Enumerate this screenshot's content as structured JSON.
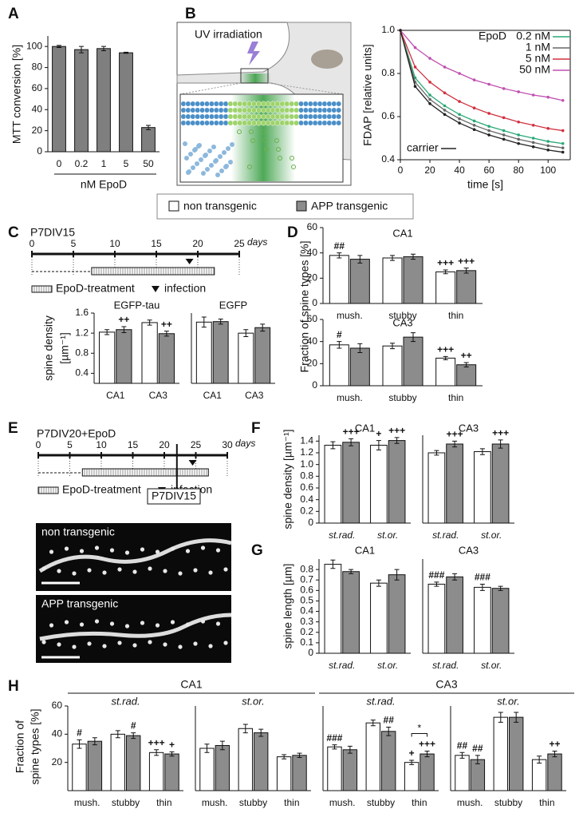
{
  "panels": {
    "labels": [
      "A",
      "B",
      "C",
      "D",
      "E",
      "F",
      "G",
      "H"
    ],
    "B": {
      "annotation": "UV irradiation"
    },
    "legend": [
      {
        "name": "non transgenic",
        "color": "#ffffff"
      },
      {
        "name": "APP transgenic",
        "color": "#8c8c8c"
      }
    ],
    "C": {
      "title": "P7DIV15",
      "ticks": [
        0,
        5,
        10,
        15,
        20,
        25
      ],
      "unit": "days",
      "treatment": "EpoD-treatment",
      "infection": "infection"
    },
    "E": {
      "title": "P7DIV20+EpoD",
      "ticks": [
        0,
        5,
        10,
        15,
        20,
        25,
        30
      ],
      "unit": "days",
      "marker": "P7DIV15",
      "treatment": "EpoD-treatment",
      "infection": "infection",
      "images": [
        "non transgenic",
        "APP transgenic"
      ]
    },
    "H": {
      "groups": [
        "CA1",
        "CA3"
      ]
    }
  },
  "chart_data": [
    {
      "type": "bar",
      "ylabel": "MTT conversion [%]",
      "xlabel": "nM EpoD",
      "categories": [
        "0",
        "0.2",
        "1",
        "5",
        "50"
      ],
      "values": [
        100,
        97,
        98,
        94,
        23
      ],
      "errors": [
        1,
        3,
        2,
        0.5,
        2
      ],
      "color": "#7f7f7f",
      "ylim": [
        0,
        110
      ],
      "yticks": [
        0,
        20,
        40,
        60,
        80,
        100
      ]
    },
    {
      "type": "line",
      "ylabel": "FDAP [relative units]",
      "xlabel": "time [s]",
      "legend_title": "EpoD",
      "x": [
        0,
        10,
        20,
        30,
        40,
        50,
        60,
        70,
        80,
        90,
        100,
        110
      ],
      "xlim": [
        0,
        115
      ],
      "ylim": [
        0.4,
        1.0
      ],
      "xticks": [
        0,
        20,
        40,
        60,
        80,
        100
      ],
      "yticks": [
        0.4,
        0.6,
        0.8,
        {
          "value": 1,
          "label": "1.0"
        }
      ],
      "series": [
        {
          "name": "0.2 nM",
          "color": "#2aa876",
          "values": [
            1.0,
            0.78,
            0.7,
            0.65,
            0.61,
            0.58,
            0.555,
            0.535,
            0.515,
            0.5,
            0.485,
            0.475
          ]
        },
        {
          "name": "1 nM",
          "color": "#666666",
          "values": [
            1.0,
            0.76,
            0.68,
            0.63,
            0.59,
            0.56,
            0.535,
            0.515,
            0.495,
            0.48,
            0.465,
            0.455
          ]
        },
        {
          "name": "5 nM",
          "color": "#d0303f",
          "values": [
            1.0,
            0.83,
            0.76,
            0.71,
            0.67,
            0.64,
            0.615,
            0.595,
            0.575,
            0.56,
            0.545,
            0.535
          ]
        },
        {
          "name": "50 nM",
          "color": "#c050b0",
          "values": [
            1.0,
            0.92,
            0.87,
            0.83,
            0.8,
            0.77,
            0.75,
            0.73,
            0.715,
            0.7,
            0.69,
            0.675
          ]
        },
        {
          "name": "carrier",
          "color": "#222222",
          "values": [
            1.0,
            0.74,
            0.66,
            0.61,
            0.57,
            0.54,
            0.515,
            0.495,
            0.475,
            0.46,
            0.445,
            0.435
          ]
        }
      ]
    },
    {
      "type": "bar",
      "title": "EGFP-tau",
      "ylabel": [
        "spine density",
        "[µm⁻¹]"
      ],
      "categories": [
        "CA1",
        "CA3"
      ],
      "ylim": [
        0.2,
        1.6
      ],
      "yticks": [
        0.4,
        0.8,
        1.2,
        1.6
      ],
      "series": [
        {
          "color": "#ffffff",
          "values": [
            1.22,
            1.41
          ],
          "errors": [
            0.05,
            0.05
          ],
          "annotations": [
            null,
            null
          ]
        },
        {
          "color": "#8c8c8c",
          "values": [
            1.27,
            1.19
          ],
          "errors": [
            0.06,
            0.05
          ],
          "annotations": [
            "++",
            "++"
          ]
        }
      ]
    },
    {
      "type": "bar",
      "title": "EGFP",
      "categories": [
        "CA1",
        "CA3"
      ],
      "ylim": [
        0.2,
        1.6
      ],
      "series": [
        {
          "color": "#ffffff",
          "values": [
            1.42,
            1.2
          ],
          "errors": [
            0.1,
            0.07
          ],
          "annotations": [
            null,
            null
          ]
        },
        {
          "color": "#8c8c8c",
          "values": [
            1.43,
            1.31
          ],
          "errors": [
            0.05,
            0.07
          ],
          "annotations": [
            null,
            null
          ]
        }
      ]
    },
    {
      "type": "bar",
      "title": "CA1",
      "ylabel": "Fraction of spine types [%]",
      "categories": [
        "mush.",
        "stubby",
        "thin"
      ],
      "ylim": [
        0,
        60
      ],
      "yticks": [
        0,
        20,
        40,
        60
      ],
      "series": [
        {
          "color": "#ffffff",
          "values": [
            38,
            36,
            25
          ],
          "errors": [
            2,
            2,
            1.5
          ],
          "annotations": [
            "##",
            null,
            "+++"
          ]
        },
        {
          "color": "#8c8c8c",
          "values": [
            35,
            37,
            26
          ],
          "errors": [
            3,
            2,
            2
          ],
          "annotations": [
            null,
            null,
            "+++"
          ]
        }
      ]
    },
    {
      "type": "bar",
      "title": "CA3",
      "categories": [
        "mush.",
        "stubby",
        "thin"
      ],
      "ylim": [
        0,
        60
      ],
      "yticks": [
        0,
        20,
        40,
        60
      ],
      "series": [
        {
          "color": "#ffffff",
          "values": [
            37,
            36,
            25
          ],
          "errors": [
            3,
            2.5,
            1.5
          ],
          "annotations": [
            "#",
            null,
            "+++"
          ]
        },
        {
          "color": "#8c8c8c",
          "values": [
            34,
            44,
            19
          ],
          "errors": [
            4,
            4,
            2
          ],
          "annotations": [
            null,
            null,
            "++"
          ]
        }
      ]
    },
    {
      "type": "bar",
      "title": "CA1",
      "ylabel": "spine density [µm⁻¹]",
      "categories": [
        "st.rad.",
        "st.or."
      ],
      "ylim": [
        0,
        1.5
      ],
      "yticks": [
        0,
        0.2,
        0.4,
        0.6,
        0.8,
        {
          "value": 1,
          "label": "1.0"
        },
        1.2,
        1.4
      ],
      "series": [
        {
          "color": "#ffffff",
          "values": [
            1.33,
            1.33
          ],
          "errors": [
            0.06,
            0.08
          ],
          "annotations": [
            null,
            "+"
          ]
        },
        {
          "color": "#8c8c8c",
          "values": [
            1.38,
            1.41
          ],
          "errors": [
            0.06,
            0.05
          ],
          "annotations": [
            "+++",
            "+++"
          ]
        }
      ]
    },
    {
      "type": "bar",
      "title": "CA3",
      "categories": [
        "st.rad.",
        "st.or."
      ],
      "ylim": [
        0,
        1.5
      ],
      "series": [
        {
          "color": "#ffffff",
          "values": [
            1.2,
            1.22
          ],
          "errors": [
            0.04,
            0.05
          ],
          "annotations": [
            null,
            null
          ]
        },
        {
          "color": "#8c8c8c",
          "values": [
            1.35,
            1.35
          ],
          "errors": [
            0.05,
            0.07
          ],
          "annotations": [
            "+++",
            "+++"
          ]
        }
      ]
    },
    {
      "type": "bar",
      "title": "CA1",
      "ylabel": "spine length [µm]",
      "categories": [
        "st.rad.",
        "st.or."
      ],
      "ylim": [
        0,
        0.9
      ],
      "yticks": [
        0,
        0.1,
        0.2,
        0.3,
        0.4,
        0.5,
        0.6,
        0.7,
        0.8
      ],
      "series": [
        {
          "color": "#ffffff",
          "values": [
            0.85,
            0.67
          ],
          "errors": [
            0.04,
            0.03
          ],
          "annotations": [
            null,
            null
          ]
        },
        {
          "color": "#8c8c8c",
          "values": [
            0.78,
            0.75
          ],
          "errors": [
            0.02,
            0.05
          ],
          "annotations": [
            null,
            null
          ]
        }
      ]
    },
    {
      "type": "bar",
      "title": "CA3",
      "categories": [
        "st.rad.",
        "st.or."
      ],
      "ylim": [
        0,
        0.9
      ],
      "series": [
        {
          "color": "#ffffff",
          "values": [
            0.66,
            0.63
          ],
          "errors": [
            0.02,
            0.03
          ],
          "annotations": [
            "###",
            "###"
          ]
        },
        {
          "color": "#8c8c8c",
          "values": [
            0.73,
            0.62
          ],
          "errors": [
            0.03,
            0.02
          ],
          "annotations": [
            null,
            null
          ]
        }
      ]
    },
    {
      "type": "bar",
      "title": "st.rad.",
      "ylabel": [
        "Fraction of",
        "spine types [%]"
      ],
      "categories": [
        "mush.",
        "stubby",
        "thin"
      ],
      "ylim": [
        0,
        60
      ],
      "yticks": [
        20,
        40,
        60
      ],
      "series": [
        {
          "color": "#ffffff",
          "values": [
            33,
            40,
            27
          ],
          "errors": [
            3,
            2.5,
            2
          ],
          "annotations": [
            "#",
            null,
            "+++"
          ]
        },
        {
          "color": "#8c8c8c",
          "values": [
            35,
            39,
            26
          ],
          "errors": [
            2.5,
            2,
            1.5
          ],
          "annotations": [
            null,
            "#",
            "+"
          ]
        }
      ]
    },
    {
      "type": "bar",
      "title": "st.or.",
      "categories": [
        "mush.",
        "stubby",
        "thin"
      ],
      "ylim": [
        0,
        60
      ],
      "series": [
        {
          "color": "#ffffff",
          "values": [
            30,
            44,
            24
          ],
          "errors": [
            3,
            3,
            1.5
          ],
          "annotations": [
            null,
            null,
            null
          ]
        },
        {
          "color": "#8c8c8c",
          "values": [
            32,
            41,
            25
          ],
          "errors": [
            3,
            2.5,
            1.5
          ],
          "annotations": [
            null,
            null,
            null
          ]
        }
      ]
    },
    {
      "type": "bar",
      "title": "st.rad.",
      "categories": [
        "mush.",
        "stubby",
        "thin"
      ],
      "ylim": [
        0,
        60
      ],
      "significance": {
        "category": 2,
        "label": "*"
      },
      "series": [
        {
          "color": "#ffffff",
          "values": [
            31,
            48,
            20
          ],
          "errors": [
            1.5,
            2,
            1.5
          ],
          "annotations": [
            "###",
            null,
            "+"
          ]
        },
        {
          "color": "#8c8c8c",
          "values": [
            29,
            42,
            26
          ],
          "errors": [
            2.5,
            3,
            2
          ],
          "annotations": [
            null,
            "##",
            "+++"
          ]
        }
      ]
    },
    {
      "type": "bar",
      "title": "st.or.",
      "categories": [
        "mush.",
        "stubby",
        "thin"
      ],
      "ylim": [
        0,
        60
      ],
      "series": [
        {
          "color": "#ffffff",
          "values": [
            25,
            52,
            22
          ],
          "errors": [
            2,
            3.5,
            2.5
          ],
          "annotations": [
            "##",
            null,
            null
          ]
        },
        {
          "color": "#8c8c8c",
          "values": [
            22,
            52,
            26
          ],
          "errors": [
            3,
            3.5,
            2
          ],
          "annotations": [
            "##",
            null,
            "++"
          ]
        }
      ]
    }
  ]
}
